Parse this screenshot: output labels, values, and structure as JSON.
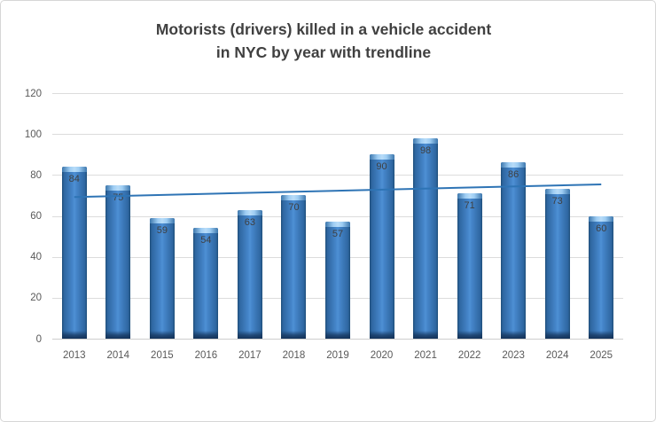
{
  "window": {
    "background": "#ffffff",
    "border_color": "#d6d6d6"
  },
  "chart_data": {
    "type": "bar",
    "title_line1": "Motorists (drivers) killed in a vehicle accident",
    "title_line2": "in NYC by year with trendline",
    "categories": [
      "2013",
      "2014",
      "2015",
      "2016",
      "2017",
      "2018",
      "2019",
      "2020",
      "2021",
      "2022",
      "2023",
      "2024",
      "2025"
    ],
    "values": [
      84,
      75,
      59,
      54,
      63,
      70,
      57,
      90,
      98,
      71,
      86,
      73,
      60
    ],
    "data_labels_shown": true,
    "xlabel": "",
    "ylabel": "",
    "y_ticks": [
      0,
      20,
      40,
      60,
      80,
      100,
      120
    ],
    "ylim": [
      0,
      120
    ],
    "grid": true,
    "legend_position": "none",
    "trendline": {
      "type": "linear",
      "start_value": 69.2,
      "end_value": 75.4,
      "color": "#2e74b5"
    },
    "colors": {
      "bar_fill_mid": "#4e90d5",
      "bar_fill_edge": "#1f4e79",
      "bar_top_highlight": "#b8dcf8",
      "bar_bottom_shadow": "#14335a",
      "gridline": "#dcdcdc",
      "tick_text": "#595959",
      "data_label_text": "#3f3f3f",
      "title_text": "#404040"
    }
  }
}
